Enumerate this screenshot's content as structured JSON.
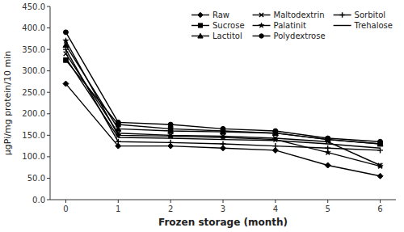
{
  "chart_data": {
    "type": "line",
    "xlabel": "Frozen storage (month)",
    "ylabel": "μgPi/mg protein/10 min",
    "x": [
      0,
      1,
      2,
      3,
      4,
      5,
      6
    ],
    "xlim": [
      -0.3,
      6.3
    ],
    "xticks": [
      0,
      1,
      2,
      3,
      4,
      5,
      6
    ],
    "ylim": [
      0,
      450
    ],
    "yticks": [
      {
        "value": 0,
        "label": "0.0"
      },
      {
        "value": 50,
        "label": "50.0"
      },
      {
        "value": 100,
        "label": "100.0"
      },
      {
        "value": 150,
        "label": "150.0"
      },
      {
        "value": 200,
        "label": "200.0"
      },
      {
        "value": 250,
        "label": "250.0"
      },
      {
        "value": 300,
        "label": "300.0"
      },
      {
        "value": 350,
        "label": "350.0"
      },
      {
        "value": 400,
        "label": "400.0"
      },
      {
        "value": 450,
        "label": "450.0"
      }
    ],
    "grid": false,
    "legend": "upper right",
    "series": [
      {
        "name": "Raw",
        "color": "#000000",
        "marker": "diamond",
        "values": [
          270,
          125,
          125,
          120,
          115,
          80,
          55
        ]
      },
      {
        "name": "Sucrose",
        "color": "#000000",
        "marker": "square",
        "values": [
          325,
          175,
          165,
          160,
          155,
          140,
          130
        ]
      },
      {
        "name": "Lactitol",
        "color": "#000000",
        "marker": "triangle",
        "values": [
          360,
          165,
          160,
          158,
          155,
          140,
          130
        ]
      },
      {
        "name": "Maltodextrin",
        "color": "#000000",
        "marker": "x",
        "values": [
          340,
          155,
          150,
          148,
          143,
          135,
          80
        ]
      },
      {
        "name": "Palatinit",
        "color": "#000000",
        "marker": "star",
        "values": [
          370,
          150,
          148,
          145,
          140,
          110,
          78
        ]
      },
      {
        "name": "Polydextrose",
        "color": "#000000",
        "marker": "circle",
        "values": [
          390,
          180,
          175,
          165,
          160,
          143,
          135
        ]
      },
      {
        "name": "Sorbitol",
        "color": "#000000",
        "marker": "plus",
        "values": [
          350,
          135,
          133,
          130,
          125,
          120,
          115
        ]
      },
      {
        "name": "Trehalose",
        "color": "#000000",
        "marker": "none",
        "values": [
          330,
          145,
          143,
          140,
          138,
          130,
          120
        ]
      }
    ]
  }
}
